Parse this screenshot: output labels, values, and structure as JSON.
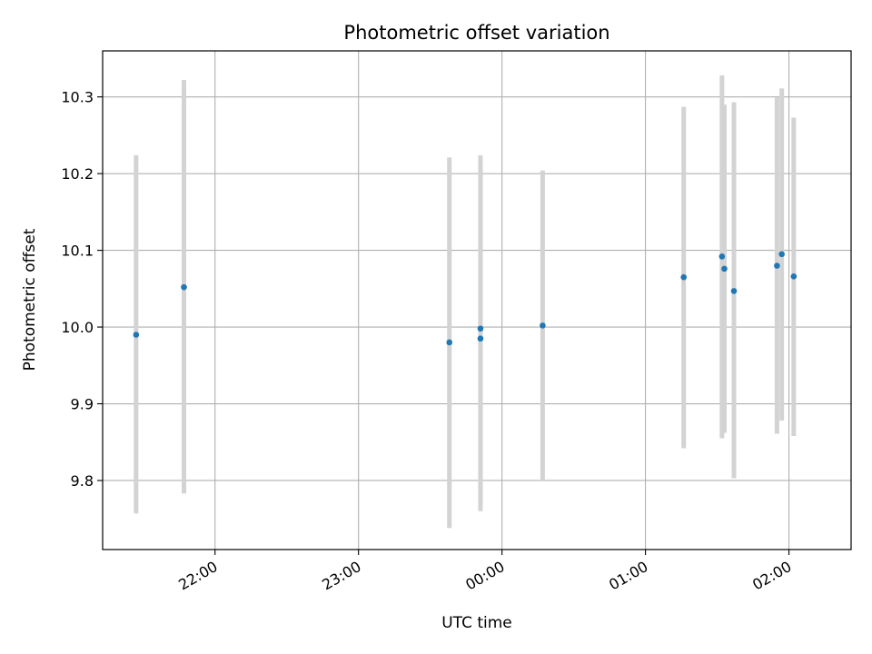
{
  "chart_data": {
    "type": "scatter",
    "title": "Photometric offset variation",
    "xlabel": "UTC time",
    "ylabel": "Photometric offset",
    "grid": true,
    "xlim": [
      "21:13",
      "02:26"
    ],
    "ylim": [
      9.71,
      10.36
    ],
    "x_ticks": [
      "22:00",
      "23:00",
      "00:00",
      "01:00",
      "02:00"
    ],
    "y_ticks": [
      "9.8",
      "9.9",
      "10.0",
      "10.1",
      "10.2",
      "10.3"
    ],
    "colors": {
      "points": "#1f77b4",
      "errorbars": "#d3d3d3",
      "grid": "#b0b0b0"
    },
    "points": [
      {
        "x": "21:27",
        "y": 9.99,
        "ylow": 9.757,
        "yhigh": 10.224
      },
      {
        "x": "21:47",
        "y": 10.052,
        "ylow": 9.783,
        "yhigh": 10.322
      },
      {
        "x": "23:38",
        "y": 9.98,
        "ylow": 9.738,
        "yhigh": 10.221
      },
      {
        "x": "23:51",
        "y": 9.998,
        "ylow": 9.77,
        "yhigh": 10.224
      },
      {
        "x": "23:51",
        "y": 9.985,
        "ylow": 9.76,
        "yhigh": 10.21
      },
      {
        "x": "00:17",
        "y": 10.002,
        "ylow": 9.8,
        "yhigh": 10.204
      },
      {
        "x": "01:16",
        "y": 10.065,
        "ylow": 9.842,
        "yhigh": 10.287
      },
      {
        "x": "01:32",
        "y": 10.092,
        "ylow": 9.855,
        "yhigh": 10.328
      },
      {
        "x": "01:33",
        "y": 10.076,
        "ylow": 9.862,
        "yhigh": 10.29
      },
      {
        "x": "01:37",
        "y": 10.047,
        "ylow": 9.803,
        "yhigh": 10.293
      },
      {
        "x": "01:55",
        "y": 10.08,
        "ylow": 9.861,
        "yhigh": 10.299
      },
      {
        "x": "01:57",
        "y": 10.095,
        "ylow": 9.878,
        "yhigh": 10.311
      },
      {
        "x": "02:02",
        "y": 10.066,
        "ylow": 9.858,
        "yhigh": 10.273
      }
    ]
  }
}
